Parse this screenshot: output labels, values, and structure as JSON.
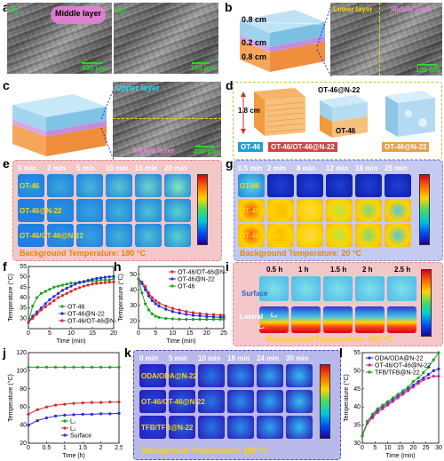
{
  "panels": {
    "a": {
      "label": "a",
      "sub1": "a₁",
      "sub2": "a₂",
      "tag": "Middle layer",
      "scale1": "400 μm",
      "scale2": "100 μm"
    },
    "b": {
      "label": "b",
      "dims": [
        "0.8 cm",
        "0.2 cm",
        "0.8 cm"
      ],
      "upper": "Lower layer",
      "middle": "Middle layer",
      "scale": "100 μm"
    },
    "c": {
      "label": "c",
      "upper": "Upper layer",
      "middle": "Middle layer",
      "scale": "400 μm"
    },
    "d": {
      "label": "d",
      "height": "1.8 cm",
      "lbl1": "OT-46@N-22",
      "lbl2": "OT-46",
      "tags": [
        "OT-46",
        "OT-46/OT-46@N-22",
        "OT-46@N-22"
      ]
    },
    "e": {
      "label": "e",
      "times": [
        "0 min",
        "2 min",
        "5 min",
        "10 min",
        "15 min",
        "20 min"
      ],
      "rows": [
        "OT-46",
        "OT-46@N-22",
        "OT-46/OT-46@N-22"
      ],
      "bg": "Background Temperature: 180 °C"
    },
    "g": {
      "label": "g",
      "times": [
        "0.5 min",
        "2 min",
        "8 min",
        "12 min",
        "18 min",
        "25 min"
      ],
      "rows": [
        "OT-46",
        "OT-46@N-22",
        "OT-46/OT-46@N-22"
      ],
      "bg": "Background Temperature: 20 °C"
    },
    "i": {
      "label": "i",
      "times": [
        "0.5 h",
        "1 h",
        "1.5 h",
        "2 h",
        "2.5 h"
      ],
      "surface": "Surface",
      "lateral": "Lateral",
      "l1": "L₁",
      "l2": "L₂",
      "bg": "Background Temperature: 180 °C"
    },
    "k": {
      "label": "k",
      "times": [
        "0 min",
        "5 min",
        "10 min",
        "18 min",
        "24 min",
        "30 min"
      ],
      "rows": [
        "ODA/ODA@N-22",
        "OT-46/OT-46@N-22",
        "TFB/TFB@N-22"
      ],
      "bg": "Background Temperature: 180 °C"
    },
    "f": {
      "label": "f"
    },
    "h": {
      "label": "h"
    },
    "j": {
      "label": "j"
    },
    "l": {
      "label": "l"
    }
  },
  "chart_data": [
    {
      "id": "f",
      "type": "line",
      "xlabel": "Time (min)",
      "ylabel": "Temperature (°C)",
      "xlim": [
        0,
        20
      ],
      "ylim": [
        25,
        55
      ],
      "xticks": [
        0,
        5,
        10,
        15,
        20
      ],
      "yticks": [
        30,
        35,
        40,
        45,
        50,
        55
      ],
      "series": [
        {
          "name": "OT-46",
          "color": "#1aa31a",
          "x": [
            0,
            1,
            2,
            3,
            4,
            5,
            6,
            7,
            8,
            9,
            10,
            11,
            12,
            13,
            14,
            15,
            16,
            17,
            18,
            19,
            20
          ],
          "values": [
            28,
            36,
            40,
            42,
            43,
            44,
            45,
            45.5,
            46,
            46.5,
            47,
            47,
            47.5,
            47.5,
            48,
            48,
            48,
            48.5,
            48.5,
            48.5,
            49
          ]
        },
        {
          "name": "OT-46@N-22",
          "color": "#2a2ad6",
          "x": [
            0,
            1,
            2,
            3,
            4,
            5,
            6,
            7,
            8,
            9,
            10,
            11,
            12,
            13,
            14,
            15,
            16,
            17,
            18,
            19,
            20
          ],
          "values": [
            28,
            31,
            33,
            35,
            37,
            39,
            40.5,
            42,
            43.5,
            44.5,
            45.5,
            46.5,
            47.2,
            47.8,
            48.3,
            48.8,
            49.2,
            49.5,
            49.8,
            50,
            50.2
          ]
        },
        {
          "name": "OT-46/OT-46@N-22",
          "color": "#d62a2a",
          "x": [
            0,
            1,
            2,
            3,
            4,
            5,
            6,
            7,
            8,
            9,
            10,
            11,
            12,
            13,
            14,
            15,
            16,
            17,
            18,
            19,
            20
          ],
          "values": [
            28,
            30,
            32,
            34,
            35.5,
            37,
            38.5,
            40,
            41,
            42,
            43,
            44,
            44.8,
            45.5,
            46,
            46.5,
            46.8,
            47,
            47.2,
            47.4,
            47.5
          ]
        }
      ]
    },
    {
      "id": "h",
      "type": "line",
      "xlabel": "Time (min)",
      "ylabel": "Temperature (°C)",
      "xlim": [
        0,
        25
      ],
      "ylim": [
        15,
        55
      ],
      "xticks": [
        0,
        5,
        10,
        15,
        20,
        25
      ],
      "yticks": [
        20,
        30,
        40,
        50
      ],
      "series": [
        {
          "name": "OT-46/OT-46@N-22",
          "color": "#d62a2a",
          "x": [
            0,
            1,
            2,
            3,
            4,
            5,
            6,
            8,
            10,
            12,
            14,
            16,
            18,
            20,
            22,
            24,
            25
          ],
          "values": [
            47,
            45,
            42,
            38,
            35,
            33,
            31.5,
            29.5,
            28,
            27,
            26,
            25.3,
            24.8,
            24.3,
            24,
            23.7,
            23.5
          ]
        },
        {
          "name": "OT-46@N-22",
          "color": "#2a2ad6",
          "x": [
            0,
            1,
            2,
            3,
            4,
            5,
            6,
            8,
            10,
            12,
            14,
            16,
            18,
            20,
            22,
            24,
            25
          ],
          "values": [
            47,
            44,
            40,
            36,
            33,
            31,
            29.5,
            27.5,
            26,
            25,
            24.2,
            23.6,
            23.2,
            22.8,
            22.5,
            22.3,
            22.2
          ]
        },
        {
          "name": "OT-46",
          "color": "#1aa31a",
          "x": [
            0,
            1,
            2,
            3,
            4,
            5,
            6,
            8,
            10,
            12,
            14,
            16,
            18,
            20,
            22,
            24,
            25
          ],
          "values": [
            47,
            38,
            31,
            27,
            24.5,
            23,
            22.2,
            21.6,
            21.3,
            21.1,
            21,
            21,
            21,
            21,
            21,
            21,
            21
          ]
        }
      ]
    },
    {
      "id": "j",
      "type": "line",
      "xlabel": "Time (h)",
      "ylabel": "Temperature (°C)",
      "xlim": [
        0,
        2.5
      ],
      "ylim": [
        20,
        120
      ],
      "xticks": [
        0,
        0.5,
        1,
        1.5,
        2,
        2.5
      ],
      "yticks": [
        20,
        40,
        60,
        80,
        100,
        120
      ],
      "series": [
        {
          "name": "L₁",
          "color": "#1aa31a",
          "x": [
            0,
            0.25,
            0.5,
            0.75,
            1,
            1.25,
            1.5,
            1.75,
            2,
            2.25,
            2.5
          ],
          "values": [
            104,
            104,
            104,
            104,
            104,
            104,
            104,
            104,
            104,
            104,
            104
          ]
        },
        {
          "name": "L₂",
          "color": "#d62a2a",
          "x": [
            0,
            0.25,
            0.5,
            0.75,
            1,
            1.25,
            1.5,
            1.75,
            2,
            2.25,
            2.5
          ],
          "values": [
            52,
            57,
            60,
            62,
            63,
            64,
            64.5,
            65,
            65,
            65.5,
            65.5
          ]
        },
        {
          "name": "Surface",
          "color": "#2a2ad6",
          "x": [
            0,
            0.25,
            0.5,
            0.75,
            1,
            1.25,
            1.5,
            1.75,
            2,
            2.25,
            2.5
          ],
          "values": [
            40,
            45,
            48,
            50,
            51,
            51.5,
            52,
            52,
            52.5,
            52.5,
            53
          ]
        }
      ]
    },
    {
      "id": "l",
      "type": "line",
      "xlabel": "Time (min)",
      "ylabel": "Temperature (°C)",
      "xlim": [
        0,
        30
      ],
      "ylim": [
        30,
        55
      ],
      "xticks": [
        0,
        5,
        10,
        15,
        20,
        25,
        30
      ],
      "yticks": [
        30,
        35,
        40,
        45,
        50,
        55
      ],
      "series": [
        {
          "name": "ODA/ODA@N-22",
          "color": "#2a2ad6",
          "x": [
            0,
            2,
            4,
            6,
            8,
            10,
            12,
            14,
            16,
            18,
            20,
            22,
            24,
            26,
            28,
            30
          ],
          "values": [
            32,
            36,
            37.5,
            39,
            40,
            41,
            42,
            43,
            44,
            45,
            46,
            47,
            48,
            49,
            50,
            50.5
          ]
        },
        {
          "name": "OT-46/OT-46@N-22",
          "color": "#d6208a",
          "x": [
            0,
            2,
            4,
            6,
            8,
            10,
            12,
            14,
            16,
            18,
            20,
            22,
            24,
            26,
            28,
            30
          ],
          "values": [
            32,
            35.5,
            37,
            38.5,
            39.5,
            40.5,
            41.5,
            42.5,
            43.5,
            44.5,
            45.5,
            46.5,
            47.5,
            48,
            48.5,
            48.5
          ]
        },
        {
          "name": "TFB/TFB@N-22",
          "color": "#1aa31a",
          "x": [
            0,
            2,
            4,
            6,
            8,
            10,
            12,
            14,
            16,
            18,
            20,
            22,
            24,
            26,
            28,
            30
          ],
          "values": [
            32,
            36,
            38,
            39.5,
            40.5,
            41.5,
            42.5,
            43.5,
            44.5,
            45.5,
            47,
            48,
            49.5,
            51,
            53,
            55
          ]
        }
      ]
    }
  ]
}
